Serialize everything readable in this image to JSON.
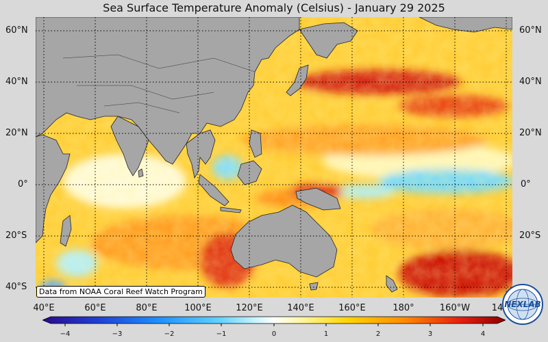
{
  "title": "Sea Surface Temperature Anomaly (Celsius) - January 29 2025",
  "credit": "Data from NOAA Coral Reef Watch Program",
  "lat_labels_left": [
    "60°N",
    "40°N",
    "20°N",
    "0°",
    "20°S",
    "40°S"
  ],
  "lat_labels_right": [
    "60°N",
    "40°N",
    "20°N",
    "0°",
    "20°S"
  ],
  "lon_labels": [
    "40°E",
    "60°E",
    "80°E",
    "100°E",
    "120°E",
    "140°E",
    "160°E",
    "180°",
    "160°W",
    "14"
  ],
  "colorbar": {
    "ticks": [
      "−4",
      "−3",
      "−2",
      "−1",
      "0",
      "1",
      "2",
      "3",
      "4"
    ],
    "min": -4,
    "max": 4,
    "colors": [
      "#2b0a8a",
      "#1f3fd6",
      "#1e90ff",
      "#5fd0ff",
      "#c8f4ff",
      "#ffffff",
      "#fff6a0",
      "#ffd400",
      "#ff8c00",
      "#e8200f",
      "#8b0000"
    ]
  },
  "logo": {
    "text": "NEXLAB",
    "icon": "nexlab-globe-logo"
  },
  "colors": {
    "land": "#a6a6a6",
    "background": "#d9d9d9",
    "warm": "#ff9a1a",
    "hot": "#cc1100",
    "cool": "#5fd0ff"
  }
}
